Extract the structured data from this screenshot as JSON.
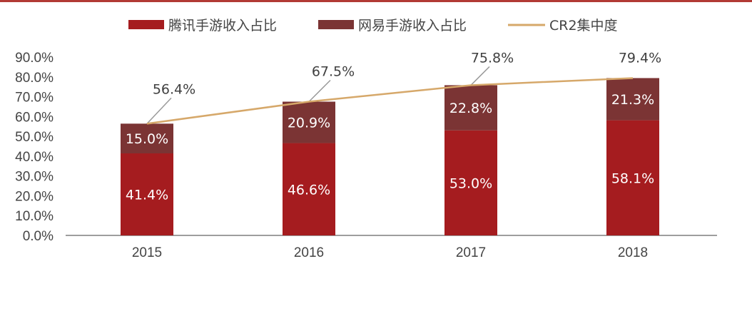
{
  "colors": {
    "tencent": "#a51c1f",
    "netease": "#7b3434",
    "cr2_line": "#d6a86a",
    "axis": "#7f7f7f",
    "callout": "#9a9a9a",
    "header_rule": "#b23a35"
  },
  "legend": {
    "tencent_label": "腾讯手游收入占比",
    "netease_label": "网易手游收入占比",
    "cr2_label": "CR2集中度"
  },
  "chart_data": {
    "type": "bar",
    "stacked": true,
    "categories": [
      "2015",
      "2016",
      "2017",
      "2018"
    ],
    "series": [
      {
        "name": "腾讯手游收入占比",
        "values": [
          41.4,
          46.6,
          53.0,
          58.1
        ],
        "labels": [
          "41.4%",
          "46.6%",
          "53.0%",
          "58.1%"
        ]
      },
      {
        "name": "网易手游收入占比",
        "values": [
          15.0,
          20.9,
          22.8,
          21.3
        ],
        "labels": [
          "15.0%",
          "20.9%",
          "22.8%",
          "21.3%"
        ]
      }
    ],
    "line_series": {
      "name": "CR2集中度",
      "values": [
        56.4,
        67.5,
        75.8,
        79.4
      ],
      "labels": [
        "56.4%",
        "67.5%",
        "75.8%",
        "79.4%"
      ]
    },
    "y_ticks": [
      "0.0%",
      "10.0%",
      "20.0%",
      "30.0%",
      "40.0%",
      "50.0%",
      "60.0%",
      "70.0%",
      "80.0%",
      "90.0%"
    ],
    "ylim": [
      0,
      90
    ],
    "grid": false,
    "legend_position": "top"
  }
}
